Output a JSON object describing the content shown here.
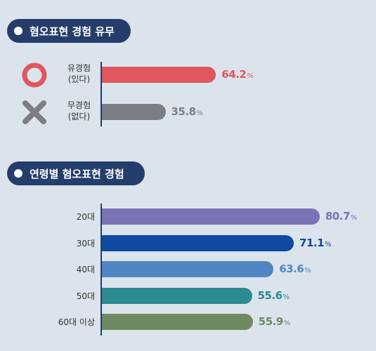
{
  "section1": {
    "title": "혐오표현 경험 유무"
  },
  "section2": {
    "title": "연령별 혐오표현 경험"
  },
  "chart_data": [
    {
      "type": "bar",
      "orientation": "horizontal",
      "title": "혐오표현 경험 유무",
      "categories": [
        {
          "line1": "유경험",
          "line2": "(있다)",
          "icon": "circle-o-icon"
        },
        {
          "line1": "무경험",
          "line2": "(없다)",
          "icon": "x-mark-icon"
        }
      ],
      "values": [
        64.2,
        35.8
      ],
      "unit": "%",
      "colors": [
        "#e0575f",
        "#7d7e85"
      ],
      "xlim": [
        0,
        100
      ]
    },
    {
      "type": "bar",
      "orientation": "horizontal",
      "title": "연령별 혐오표현 경험",
      "categories": [
        "20대",
        "30대",
        "40대",
        "50대",
        "60대 이상"
      ],
      "values": [
        80.7,
        71.1,
        63.6,
        55.6,
        55.9
      ],
      "unit": "%",
      "colors": [
        "#7a74b6",
        "#0f4a9e",
        "#4f86c3",
        "#2c8a93",
        "#6d8a62"
      ],
      "xlim": [
        0,
        100
      ]
    }
  ]
}
